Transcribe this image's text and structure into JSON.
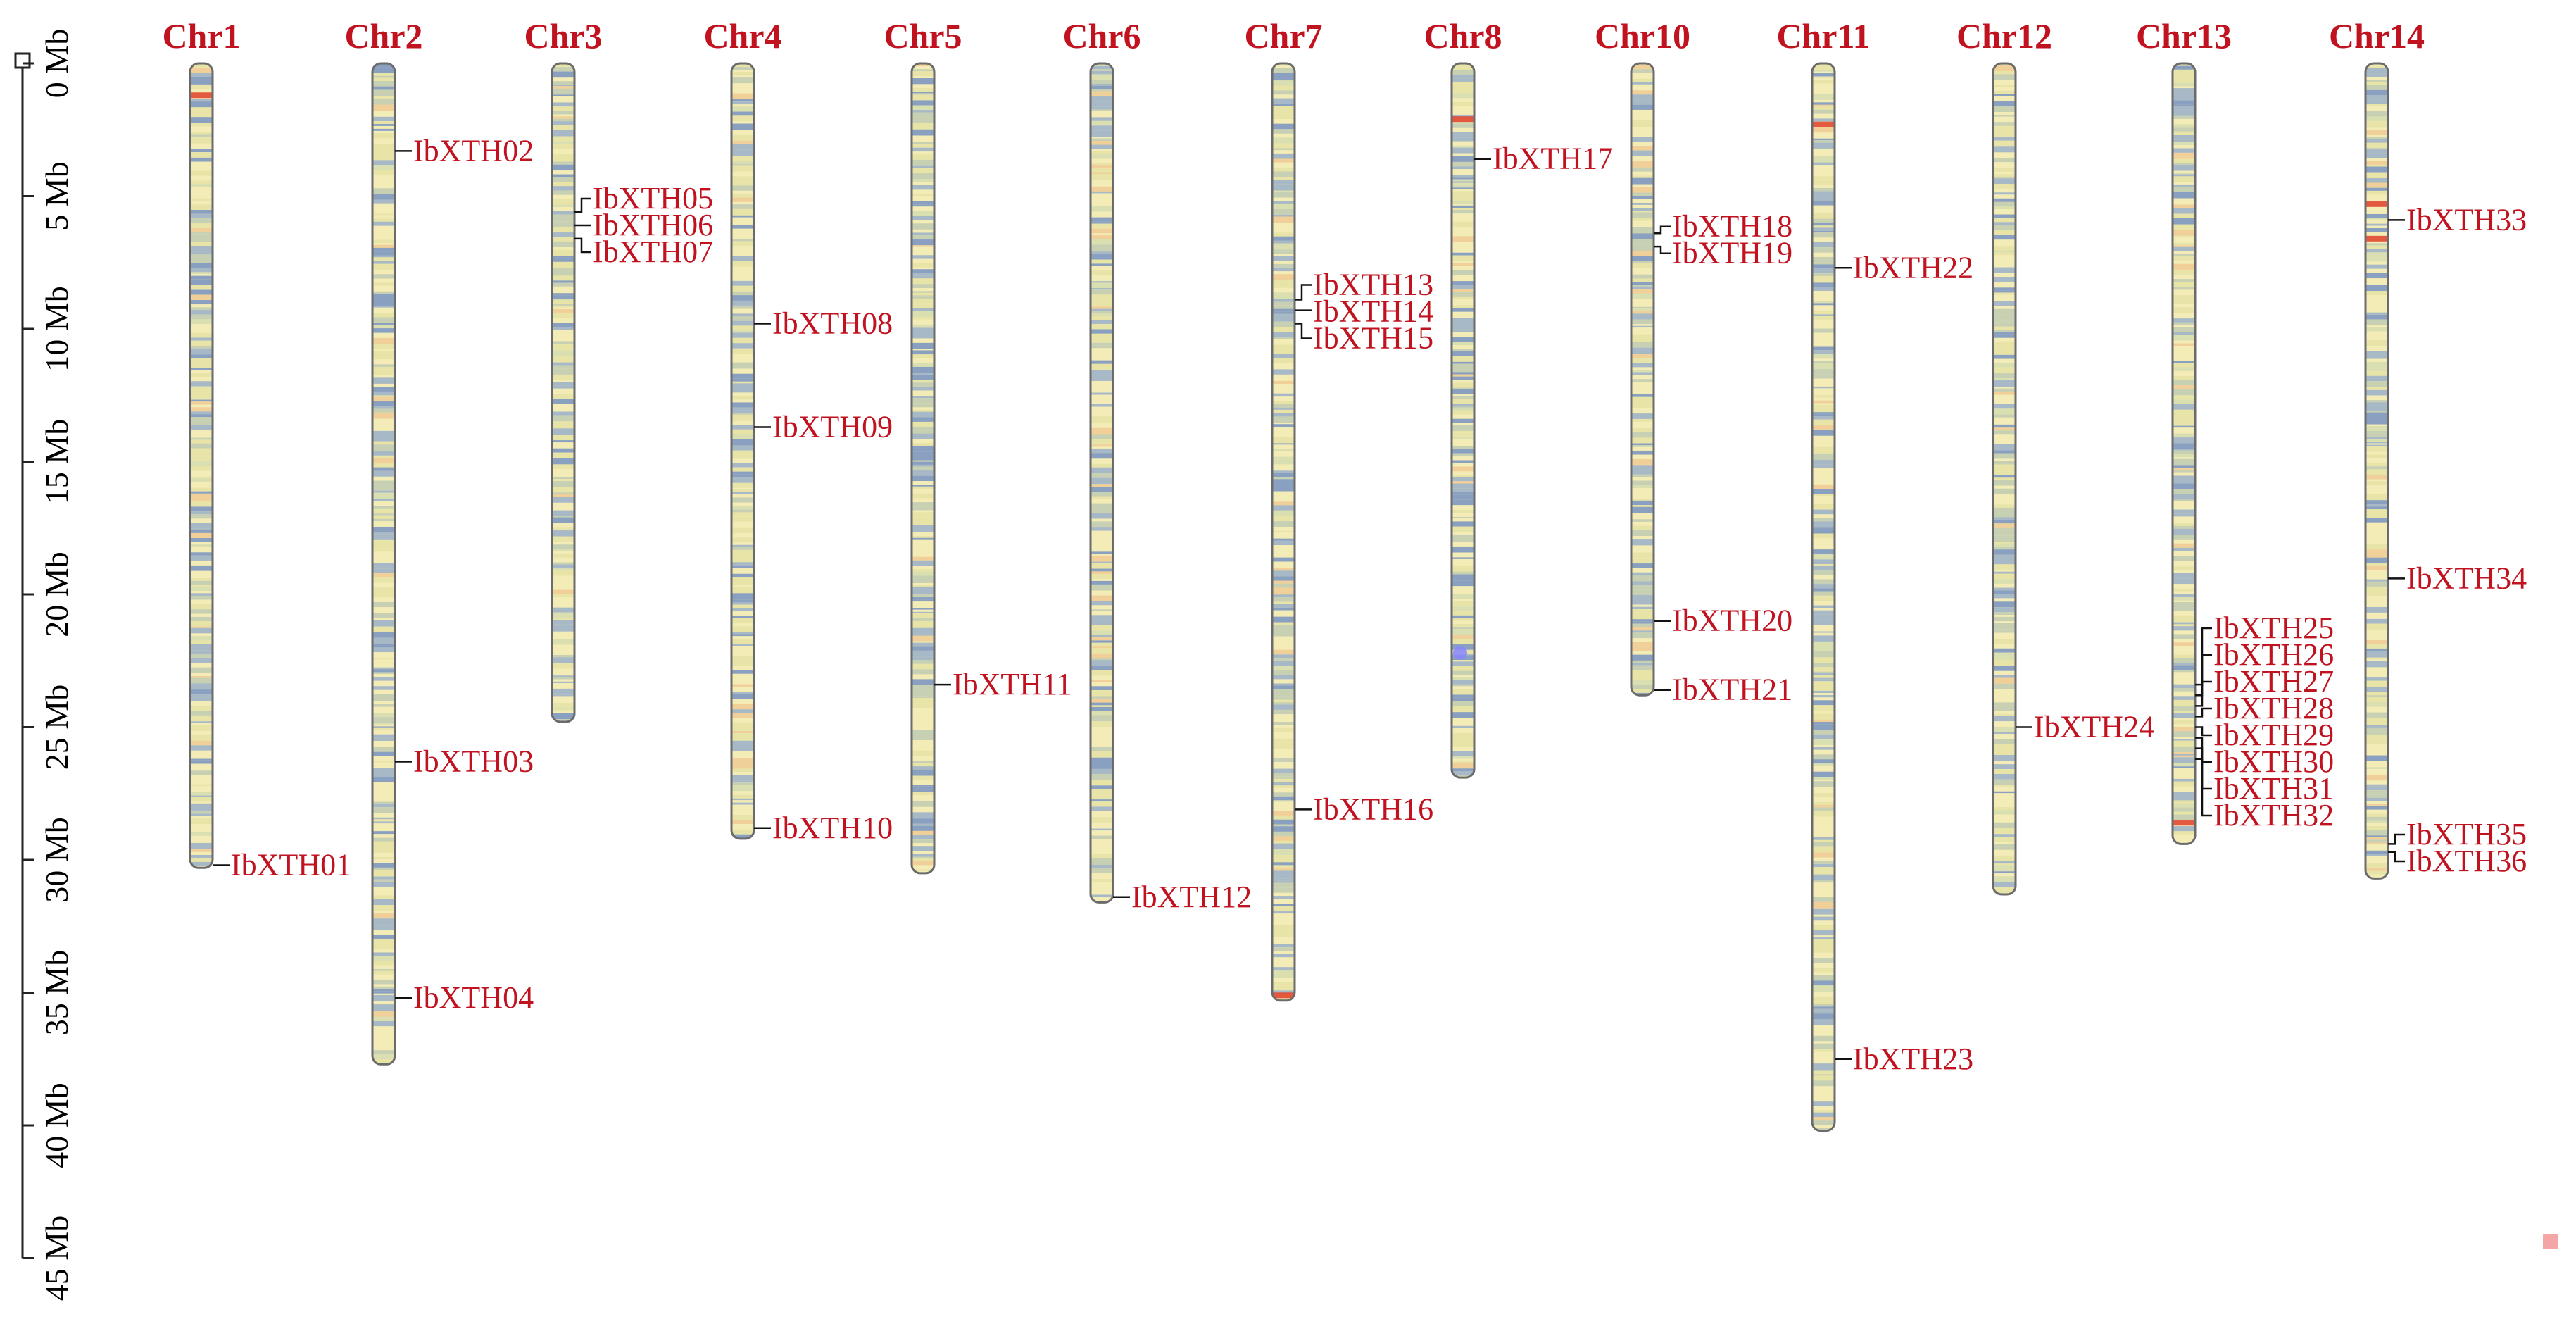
{
  "colors": {
    "label": "#c1121f",
    "axis": "#222222",
    "chromosome_border": "#6b6b6b",
    "band_palette": [
      "#f4ecb6",
      "#e8e4a8",
      "#c8d0b4",
      "#a7b8c6",
      "#8aa0c0",
      "#f0cf98",
      "#d9dfb0"
    ],
    "hotspot": "#e24a33",
    "marker_dot": "#8a86ff",
    "corner_square": "#f4a6a6"
  },
  "scale": {
    "unit": "Mb",
    "ticks": [
      {
        "value": 0,
        "label": "0 Mb"
      },
      {
        "value": 5,
        "label": "5 Mb"
      },
      {
        "value": 10,
        "label": "10 Mb"
      },
      {
        "value": 15,
        "label": "15 Mb"
      },
      {
        "value": 20,
        "label": "20 Mb"
      },
      {
        "value": 25,
        "label": "25 Mb"
      },
      {
        "value": 30,
        "label": "30 Mb"
      },
      {
        "value": 35,
        "label": "35 Mb"
      },
      {
        "value": 40,
        "label": "40 Mb"
      },
      {
        "value": 45,
        "label": "45 Mb"
      }
    ]
  },
  "chromosomes": [
    {
      "name": "Chr1",
      "length": 30.3,
      "genes": [
        {
          "id": "IbXTH01",
          "pos": 30.2
        }
      ],
      "hotspots": [
        1.2
      ]
    },
    {
      "name": "Chr2",
      "length": 37.7,
      "genes": [
        {
          "id": "IbXTH02",
          "pos": 3.3
        },
        {
          "id": "IbXTH03",
          "pos": 26.3
        },
        {
          "id": "IbXTH04",
          "pos": 35.2
        }
      ],
      "hotspots": []
    },
    {
      "name": "Chr3",
      "length": 24.8,
      "genes": [
        {
          "id": "IbXTH05",
          "pos": 5.6
        },
        {
          "id": "IbXTH06",
          "pos": 6.1
        },
        {
          "id": "IbXTH07",
          "pos": 6.6
        }
      ],
      "hotspots": []
    },
    {
      "name": "Chr4",
      "length": 29.2,
      "genes": [
        {
          "id": "IbXTH08",
          "pos": 9.8
        },
        {
          "id": "IbXTH09",
          "pos": 13.7
        },
        {
          "id": "IbXTH10",
          "pos": 28.8
        }
      ],
      "hotspots": []
    },
    {
      "name": "Chr5",
      "length": 30.5,
      "genes": [
        {
          "id": "IbXTH11",
          "pos": 23.4
        }
      ],
      "hotspots": []
    },
    {
      "name": "Chr6",
      "length": 31.6,
      "genes": [
        {
          "id": "IbXTH12",
          "pos": 31.4
        }
      ],
      "hotspots": []
    },
    {
      "name": "Chr7",
      "length": 35.3,
      "genes": [
        {
          "id": "IbXTH13",
          "pos": 8.9
        },
        {
          "id": "IbXTH14",
          "pos": 9.3
        },
        {
          "id": "IbXTH15",
          "pos": 9.8
        },
        {
          "id": "IbXTH16",
          "pos": 28.1
        }
      ],
      "hotspots": [
        35.1
      ]
    },
    {
      "name": "Chr8",
      "length": 26.9,
      "genes": [
        {
          "id": "IbXTH17",
          "pos": 3.6
        }
      ],
      "hotspots": [
        2.1
      ],
      "marker_dots": [
        22.2
      ]
    },
    {
      "name": "Chr10",
      "length": 23.8,
      "genes": [
        {
          "id": "IbXTH18",
          "pos": 6.4
        },
        {
          "id": "IbXTH19",
          "pos": 6.9
        },
        {
          "id": "IbXTH20",
          "pos": 21.0
        },
        {
          "id": "IbXTH21",
          "pos": 23.6
        }
      ],
      "hotspots": []
    },
    {
      "name": "Chr11",
      "length": 40.2,
      "genes": [
        {
          "id": "IbXTH22",
          "pos": 7.7
        },
        {
          "id": "IbXTH23",
          "pos": 37.5
        }
      ],
      "hotspots": [
        2.3
      ]
    },
    {
      "name": "Chr12",
      "length": 31.3,
      "genes": [
        {
          "id": "IbXTH24",
          "pos": 25.0
        }
      ],
      "hotspots": []
    },
    {
      "name": "Chr13",
      "length": 29.4,
      "genes": [
        {
          "id": "IbXTH25",
          "pos": 23.4
        },
        {
          "id": "IbXTH26",
          "pos": 23.8
        },
        {
          "id": "IbXTH27",
          "pos": 24.2
        },
        {
          "id": "IbXTH28",
          "pos": 24.6
        },
        {
          "id": "IbXTH29",
          "pos": 25.0
        },
        {
          "id": "IbXTH30",
          "pos": 25.4
        },
        {
          "id": "IbXTH31",
          "pos": 25.8
        },
        {
          "id": "IbXTH32",
          "pos": 26.2
        }
      ],
      "hotspots": [
        28.6
      ]
    },
    {
      "name": "Chr14",
      "length": 30.7,
      "genes": [
        {
          "id": "IbXTH33",
          "pos": 5.9
        },
        {
          "id": "IbXTH34",
          "pos": 19.4
        },
        {
          "id": "IbXTH35",
          "pos": 29.4
        },
        {
          "id": "IbXTH36",
          "pos": 29.7
        }
      ],
      "hotspots": [
        5.3,
        6.6
      ]
    }
  ]
}
